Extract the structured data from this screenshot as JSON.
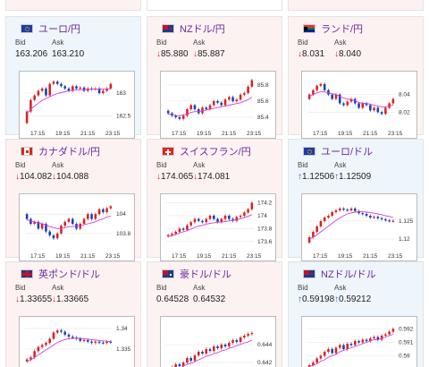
{
  "cards": [
    {
      "id": "eurjpy",
      "name": "ユーロ/円",
      "flag": "eu",
      "dir": "up",
      "col": 0,
      "row": 0,
      "bid_label": "Bid",
      "ask_label": "Ask",
      "bid": "163.206",
      "ask": "163.210",
      "bid_arrow": "",
      "ask_arrow": "",
      "xticks": [
        "17:15",
        "19:15",
        "21:15",
        "23:15"
      ],
      "yticks": [
        "163",
        "162.5"
      ],
      "chart_data": {
        "type": "candlestick",
        "ylim": [
          162.3,
          163.35
        ],
        "yticks": [
          163,
          162.5
        ],
        "close": [
          162.6,
          162.85,
          162.95,
          163.05,
          163.1,
          162.95,
          163.2,
          163.25,
          163.2,
          163.15,
          163.1,
          163.05,
          163.15,
          163.1,
          163.12,
          163.05,
          163.1,
          163.08,
          163.1,
          163.0,
          163.05,
          163.1,
          163.2
        ],
        "ma": [
          162.55,
          162.65,
          162.72,
          162.78,
          162.84,
          162.88,
          162.92,
          162.96,
          162.99,
          163.01,
          163.03,
          163.05,
          163.06,
          163.07,
          163.07,
          163.08,
          163.08,
          163.09,
          163.09,
          163.09,
          163.09,
          163.09,
          163.1
        ]
      }
    },
    {
      "id": "nzdjpy",
      "name": "NZドル/円",
      "flag": "nz",
      "dir": "down",
      "col": 1,
      "row": 0,
      "bid_label": "Bid",
      "ask_label": "Ask",
      "bid": "85.880",
      "ask": "85.887",
      "bid_arrow": "↓",
      "ask_arrow": "↓",
      "xticks": [
        "17:15",
        "19:15",
        "21:15",
        "23:15"
      ],
      "yticks": [
        "85.8",
        "85.6",
        "85.4"
      ],
      "chart_data": {
        "type": "candlestick",
        "ylim": [
          85.3,
          85.9
        ],
        "yticks": [
          85.8,
          85.6,
          85.4
        ],
        "close": [
          85.45,
          85.42,
          85.4,
          85.38,
          85.42,
          85.5,
          85.55,
          85.5,
          85.45,
          85.52,
          85.5,
          85.55,
          85.6,
          85.58,
          85.55,
          85.62,
          85.65,
          85.6,
          85.62,
          85.68,
          85.7,
          85.78,
          85.86
        ],
        "ma": [
          85.44,
          85.43,
          85.42,
          85.42,
          85.43,
          85.44,
          85.46,
          85.47,
          85.47,
          85.48,
          85.49,
          85.5,
          85.51,
          85.52,
          85.53,
          85.54,
          85.55,
          85.56,
          85.57,
          85.58,
          85.6,
          85.62,
          85.65
        ]
      }
    },
    {
      "id": "zarjpy",
      "name": "ランド/円",
      "flag": "za",
      "dir": "down",
      "col": 2,
      "row": 0,
      "bid_label": "Bid",
      "ask_label": "Ask",
      "bid": "8.031",
      "ask": "8.040",
      "bid_arrow": "↓",
      "ask_arrow": "↓",
      "xticks": [
        "17:15",
        "19:15",
        "21:15",
        "23:15"
      ],
      "yticks": [
        "8.04",
        "8.02"
      ],
      "chart_data": {
        "type": "candlestick",
        "ylim": [
          8.005,
          8.06
        ],
        "yticks": [
          8.04,
          8.02
        ],
        "close": [
          8.04,
          8.045,
          8.05,
          8.052,
          8.045,
          8.04,
          8.035,
          8.04,
          8.03,
          8.028,
          8.032,
          8.035,
          8.03,
          8.025,
          8.03,
          8.028,
          8.022,
          8.025,
          8.02,
          8.018,
          8.025,
          8.03,
          8.035
        ],
        "ma": [
          8.038,
          8.04,
          8.042,
          8.043,
          8.043,
          8.042,
          8.041,
          8.04,
          8.038,
          8.036,
          8.035,
          8.034,
          8.033,
          8.031,
          8.03,
          8.03,
          8.029,
          8.028,
          8.027,
          8.026,
          8.026,
          8.027,
          8.028
        ]
      }
    },
    {
      "id": "cadjpy",
      "name": "カナダドル/円",
      "flag": "ca",
      "dir": "down",
      "col": 0,
      "row": 1,
      "bid_label": "Bid",
      "ask_label": "Ask",
      "bid": "104.082",
      "ask": "104.088",
      "bid_arrow": "↓",
      "ask_arrow": "↓",
      "xticks": [
        "17:15",
        "19:15",
        "21:15",
        "23:15"
      ],
      "yticks": [
        "104",
        "103.8"
      ],
      "chart_data": {
        "type": "candlestick",
        "ylim": [
          103.65,
          104.15
        ],
        "yticks": [
          104,
          103.8
        ],
        "close": [
          103.95,
          103.9,
          103.92,
          103.85,
          103.9,
          103.82,
          103.78,
          103.75,
          103.8,
          103.88,
          103.92,
          103.95,
          103.9,
          103.85,
          103.9,
          103.95,
          104.0,
          103.95,
          104.0,
          104.05,
          104.02,
          104.06,
          104.08
        ],
        "ma": [
          103.94,
          103.93,
          103.92,
          103.91,
          103.9,
          103.89,
          103.87,
          103.86,
          103.85,
          103.85,
          103.86,
          103.87,
          103.87,
          103.88,
          103.88,
          103.89,
          103.9,
          103.91,
          103.92,
          103.94,
          103.95,
          103.97,
          103.98
        ]
      }
    },
    {
      "id": "chfjpy",
      "name": "スイスフラン/円",
      "flag": "ch",
      "dir": "down",
      "col": 1,
      "row": 1,
      "bid_label": "Bid",
      "ask_label": "Ask",
      "bid": "174.065",
      "ask": "174.081",
      "bid_arrow": "↓",
      "ask_arrow": "↓",
      "xticks": [
        "17:15",
        "19:15",
        "21:15",
        "23:15"
      ],
      "yticks": [
        "174.2",
        "174",
        "173.8",
        "173.6"
      ],
      "chart_data": {
        "type": "candlestick",
        "ylim": [
          173.5,
          174.25
        ],
        "yticks": [
          174.2,
          174,
          173.8,
          173.6
        ],
        "close": [
          173.7,
          173.72,
          173.75,
          173.8,
          173.78,
          173.85,
          173.9,
          173.95,
          173.92,
          173.9,
          173.95,
          174.0,
          173.95,
          173.9,
          173.95,
          174.0,
          173.95,
          173.92,
          173.98,
          174.0,
          174.05,
          174.1,
          174.2
        ],
        "ma": [
          173.68,
          173.69,
          173.71,
          173.73,
          173.75,
          173.77,
          173.79,
          173.82,
          173.84,
          173.85,
          173.87,
          173.88,
          173.89,
          173.9,
          173.9,
          173.91,
          173.92,
          173.93,
          173.94,
          173.95,
          173.97,
          173.99,
          174.02
        ]
      }
    },
    {
      "id": "eurusd",
      "name": "ユーロ/ドル",
      "flag": "eu",
      "dir": "up",
      "col": 2,
      "row": 1,
      "bid_label": "Bid",
      "ask_label": "Ask",
      "bid": "1.12506",
      "ask": "1.12509",
      "bid_arrow": "↑",
      "ask_arrow": "↑",
      "xticks": [
        "17:15",
        "19:15",
        "21:15",
        "23:15"
      ],
      "yticks": [
        "1.125",
        "1.12"
      ],
      "chart_data": {
        "type": "candlestick",
        "ylim": [
          1.1175,
          1.131
        ],
        "yticks": [
          1.125,
          1.12
        ],
        "close": [
          1.1205,
          1.122,
          1.1235,
          1.125,
          1.126,
          1.1265,
          1.1275,
          1.128,
          1.1285,
          1.1282,
          1.128,
          1.1285,
          1.1278,
          1.1272,
          1.127,
          1.1265,
          1.126,
          1.1262,
          1.1258,
          1.1255,
          1.1252,
          1.125,
          1.1251
        ],
        "ma": [
          1.12,
          1.1205,
          1.1212,
          1.122,
          1.1228,
          1.1236,
          1.1244,
          1.1252,
          1.1259,
          1.1265,
          1.127,
          1.1273,
          1.1275,
          1.1276,
          1.1276,
          1.1275,
          1.1274,
          1.1272,
          1.127,
          1.1268,
          1.1265,
          1.1263,
          1.126
        ]
      }
    },
    {
      "id": "gbpusd",
      "name": "英ポンド/ドル",
      "flag": "uk",
      "dir": "down",
      "col": 0,
      "row": 2,
      "bid_label": "Bid",
      "ask_label": "Ask",
      "bid": "1.33655",
      "ask": "1.33665",
      "bid_arrow": "↓",
      "ask_arrow": "↓",
      "xticks": [],
      "yticks": [
        "1.34",
        "1.335",
        "1.33"
      ],
      "chart_data": {
        "type": "candlestick",
        "ylim": [
          1.3285,
          1.3415
        ],
        "yticks": [
          1.34,
          1.335,
          1.33
        ],
        "close": [
          1.3325,
          1.333,
          1.3345,
          1.3355,
          1.336,
          1.3365,
          1.3375,
          1.339,
          1.3395,
          1.3392,
          1.3385,
          1.338,
          1.3378,
          1.3375,
          1.337,
          1.3372,
          1.3368,
          1.3365,
          1.3368,
          1.3366,
          1.3365,
          1.3368,
          1.3366
        ],
        "ma": [
          1.332,
          1.3324,
          1.333,
          1.3336,
          1.3342,
          1.3348,
          1.3354,
          1.336,
          1.3366,
          1.337,
          1.3373,
          1.3375,
          1.3376,
          1.3376,
          1.3376,
          1.3375,
          1.3374,
          1.3373,
          1.3372,
          1.3371,
          1.337,
          1.3369,
          1.3368
        ]
      }
    },
    {
      "id": "audusd",
      "name": "豪ドル/ドル",
      "flag": "au",
      "dir": "down",
      "col": 1,
      "row": 2,
      "bid_label": "Bid",
      "ask_label": "Ask",
      "bid": "0.64528",
      "ask": "0.64532",
      "bid_arrow": "",
      "ask_arrow": "",
      "xticks": [],
      "yticks": [
        "0.644",
        "0.642"
      ],
      "chart_data": {
        "type": "candlestick",
        "ylim": [
          0.6405,
          0.6465
        ],
        "yticks": [
          0.644,
          0.642
        ],
        "close": [
          0.6412,
          0.6415,
          0.6418,
          0.6416,
          0.642,
          0.6425,
          0.6422,
          0.6428,
          0.6432,
          0.643,
          0.6435,
          0.6433,
          0.6438,
          0.6436,
          0.644,
          0.6438,
          0.6442,
          0.6445,
          0.6443,
          0.6448,
          0.645,
          0.6452,
          0.6453
        ],
        "ma": [
          0.641,
          0.6411,
          0.6413,
          0.6414,
          0.6416,
          0.6418,
          0.6419,
          0.6421,
          0.6423,
          0.6425,
          0.6427,
          0.6428,
          0.643,
          0.6431,
          0.6433,
          0.6434,
          0.6436,
          0.6437,
          0.6439,
          0.644,
          0.6442,
          0.6443,
          0.6445
        ]
      }
    },
    {
      "id": "nzdusd",
      "name": "NZドル/ドル",
      "flag": "nz",
      "dir": "up",
      "col": 2,
      "row": 2,
      "bid_label": "Bid",
      "ask_label": "Ask",
      "bid": "0.59198",
      "ask": "0.59212",
      "bid_arrow": "↑",
      "ask_arrow": "↑",
      "xticks": [],
      "yticks": [
        "0.592",
        "0.591",
        "0.59",
        "0.589"
      ],
      "chart_data": {
        "type": "candlestick",
        "ylim": [
          0.5885,
          0.5925
        ],
        "yticks": [
          0.592,
          0.591,
          0.59,
          0.589
        ],
        "close": [
          0.5893,
          0.5895,
          0.5898,
          0.59,
          0.5903,
          0.5905,
          0.5902,
          0.5906,
          0.5908,
          0.5905,
          0.5909,
          0.5908,
          0.5911,
          0.591,
          0.5912,
          0.5911,
          0.5913,
          0.5914,
          0.5912,
          0.5915,
          0.5916,
          0.5918,
          0.592
        ],
        "ma": [
          0.5892,
          0.5893,
          0.5894,
          0.5896,
          0.5897,
          0.5899,
          0.59,
          0.5901,
          0.5903,
          0.5904,
          0.5905,
          0.5906,
          0.5907,
          0.5908,
          0.5909,
          0.591,
          0.5911,
          0.5912,
          0.5912,
          0.5913,
          0.5914,
          0.5915,
          0.5916
        ]
      }
    }
  ],
  "colors": {
    "up_candle": "#d42323",
    "down_candle": "#1a3fb4",
    "ma_line": "#d23fd8",
    "title": "#6a2ba0"
  }
}
